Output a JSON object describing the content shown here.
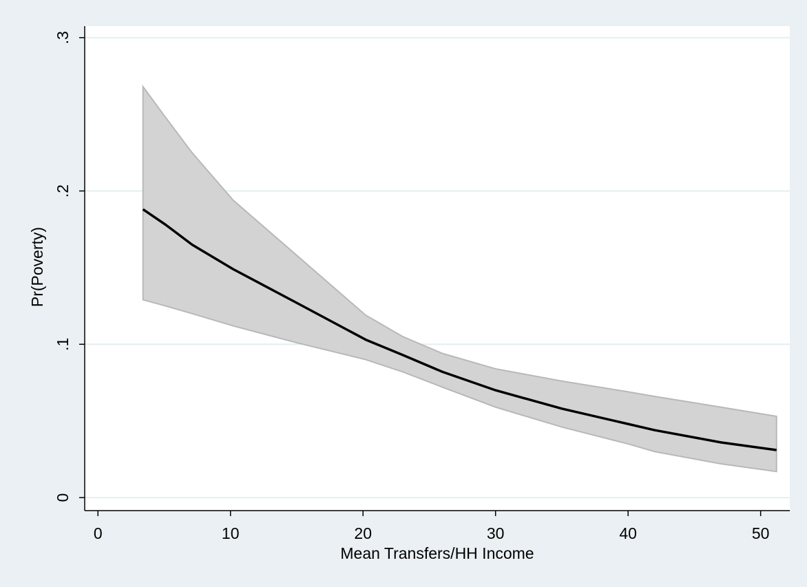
{
  "chart_data": {
    "type": "line",
    "title": "",
    "xlabel": "Mean Transfers/HH Income",
    "ylabel": "Pr(Poverty)",
    "xlim": [
      -1.0,
      52.2
    ],
    "ylim": [
      -0.0085,
      0.3075
    ],
    "x_ticks": [
      0,
      10,
      20,
      30,
      40,
      50
    ],
    "x_tick_labels": [
      "0",
      "10",
      "20",
      "30",
      "40",
      "50"
    ],
    "y_ticks": [
      0,
      0.1,
      0.2,
      0.3
    ],
    "y_tick_labels": [
      "0",
      ".1",
      ".2",
      ".3"
    ],
    "grid": "horizontal",
    "legend": "none",
    "x": [
      3.4,
      5.1,
      7.1,
      10.2,
      15,
      20.2,
      23,
      26,
      30,
      35,
      40,
      42,
      47,
      51.2
    ],
    "series": [
      {
        "values": [
          0.188,
          0.178,
          0.165,
          0.149,
          0.127,
          0.103,
          0.093,
          0.082,
          0.07,
          0.058,
          0.048,
          0.044,
          0.036,
          0.031
        ],
        "color": "#000000"
      }
    ],
    "band": {
      "upper": [
        0.268,
        0.248,
        0.225,
        0.194,
        0.158,
        0.119,
        0.105,
        0.094,
        0.084,
        0.076,
        0.069,
        0.066,
        0.059,
        0.053
      ],
      "lower": [
        0.129,
        0.125,
        0.12,
        0.112,
        0.101,
        0.09,
        0.082,
        0.072,
        0.059,
        0.046,
        0.035,
        0.03,
        0.022,
        0.017
      ],
      "color": "#d3d3d3",
      "edge_color": "#b8b8b8"
    },
    "colors": {
      "outer_background": "#eaf0f3",
      "plot_background": "#ffffff",
      "grid": "#e4eef2",
      "axis": "#000000"
    }
  }
}
